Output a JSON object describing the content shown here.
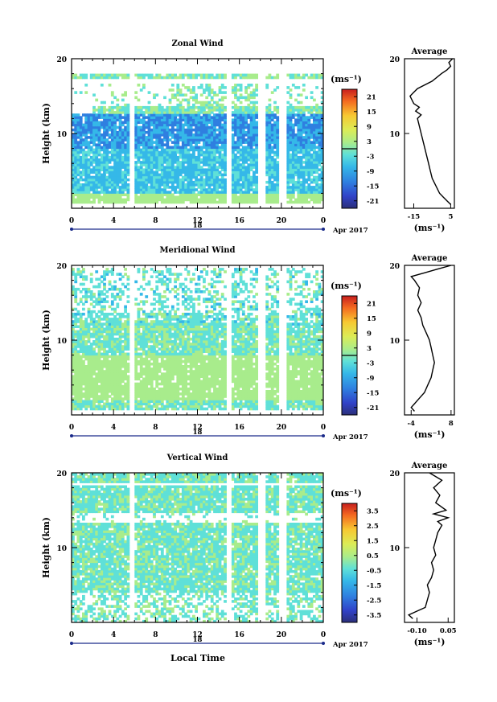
{
  "figure": {
    "xlabel": "Local Time",
    "date_label": "Apr 2017",
    "day_label": "18"
  },
  "chart_data": [
    {
      "type": "heatmap",
      "title": "Zonal Wind",
      "ylabel": "Height (km)",
      "ylim": [
        0,
        20
      ],
      "yticks": [
        "10",
        "20"
      ],
      "xlim": [
        0,
        24
      ],
      "xticks": [
        "0",
        "4",
        "8",
        "12",
        "16",
        "20",
        "0"
      ],
      "colorbar": {
        "unit": "(ms⁻¹)",
        "range": [
          -24,
          24
        ],
        "ticks": [
          "21",
          "15",
          "9",
          "3",
          "-3",
          "-9",
          "-15",
          "-21"
        ]
      },
      "profile": {
        "title": "Average",
        "unit": "(ms⁻¹)",
        "xlim": [
          -20,
          7
        ],
        "xticks": [
          "-15",
          "5"
        ],
        "yticks": [
          "10",
          "20"
        ],
        "heights": [
          0.5,
          1,
          1.5,
          2,
          3,
          4,
          5,
          6,
          7,
          8,
          9,
          10,
          11,
          12,
          12.5,
          13,
          13.5,
          14,
          14.5,
          15,
          15.5,
          16,
          17,
          18,
          18.5,
          19,
          19.5,
          20
        ],
        "values": [
          5,
          3,
          1,
          -1,
          -3,
          -5,
          -6,
          -7,
          -8,
          -9,
          -10,
          -11,
          -12,
          -13,
          -11,
          -14,
          -12,
          -15,
          -16,
          -17,
          -15,
          -13,
          -5,
          0,
          3,
          5,
          4,
          6
        ]
      }
    },
    {
      "type": "heatmap",
      "title": "Meridional Wind",
      "ylabel": "Height (km)",
      "ylim": [
        0,
        20
      ],
      "yticks": [
        "10",
        "20"
      ],
      "xlim": [
        0,
        24
      ],
      "xticks": [
        "0",
        "4",
        "8",
        "12",
        "16",
        "20",
        "0"
      ],
      "colorbar": {
        "unit": "(ms⁻¹)",
        "range": [
          -24,
          24
        ],
        "ticks": [
          "21",
          "15",
          "9",
          "3",
          "-3",
          "-9",
          "-15",
          "-21"
        ]
      },
      "profile": {
        "title": "Average",
        "unit": "(ms⁻¹)",
        "xlim": [
          -6,
          9
        ],
        "xticks": [
          "-4",
          "8"
        ],
        "yticks": [
          "10",
          "20"
        ],
        "heights": [
          0.5,
          1,
          1.5,
          2,
          3,
          4,
          5,
          6,
          7,
          8,
          9,
          10,
          11,
          12,
          13,
          14,
          15,
          16,
          17,
          18,
          18.5,
          19,
          19.5,
          20
        ],
        "values": [
          -3,
          -4,
          -3,
          -2,
          0,
          1,
          2,
          2.5,
          3,
          2.5,
          2,
          1.5,
          0.5,
          -0.5,
          -1,
          -2,
          -1,
          -2,
          -1.5,
          -3,
          -4,
          0,
          4,
          8
        ]
      }
    },
    {
      "type": "heatmap",
      "title": "Vertical Wind",
      "ylabel": "Height (km)",
      "ylim": [
        0,
        20
      ],
      "yticks": [
        "10",
        "20"
      ],
      "xlim": [
        0,
        24
      ],
      "xticks": [
        "0",
        "4",
        "8",
        "12",
        "16",
        "20",
        "0"
      ],
      "colorbar": {
        "unit": "(ms⁻¹)",
        "range": [
          -4,
          4
        ],
        "ticks": [
          "3.5",
          "2.5",
          "1.5",
          "0.5",
          "-0.5",
          "-1.5",
          "-2.5",
          "-3.5"
        ]
      },
      "profile": {
        "title": "Average",
        "unit": "(ms⁻¹)",
        "xlim": [
          -0.16,
          0.08
        ],
        "xticks": [
          "-0.10",
          "0.05"
        ],
        "yticks": [
          "10",
          "20"
        ],
        "heights": [
          0.5,
          1,
          1.5,
          2,
          3,
          4,
          5,
          6,
          7,
          8,
          9,
          10,
          11,
          12,
          13,
          13.5,
          14,
          14.5,
          15,
          16,
          17,
          18,
          19,
          20
        ],
        "values": [
          -0.12,
          -0.14,
          -0.1,
          -0.06,
          -0.05,
          -0.04,
          -0.05,
          -0.03,
          -0.02,
          -0.03,
          -0.01,
          -0.02,
          -0.01,
          0.0,
          0.02,
          0.0,
          0.05,
          -0.02,
          0.04,
          -0.01,
          0.01,
          -0.02,
          0.02,
          -0.04
        ]
      }
    }
  ]
}
